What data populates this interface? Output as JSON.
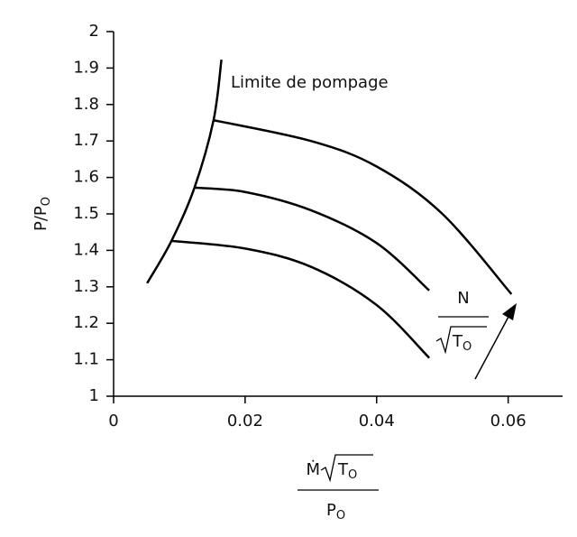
{
  "chart_data": {
    "type": "line",
    "ylabel": {
      "text": "P/P",
      "sub": "O"
    },
    "xlabel": {
      "numerator": "Ṁ",
      "root": "T",
      "root_sub": "O",
      "denominator": "P",
      "denominator_sub": "O"
    },
    "annotations": {
      "surge": "Limite de pompage",
      "speed_numerator": "N",
      "speed_root": "T",
      "speed_root_sub": "O"
    },
    "color": "#000000",
    "xlim": [
      0,
      0.068
    ],
    "ylim": [
      1,
      2
    ],
    "xticks": [
      0,
      0.02,
      0.04,
      0.06
    ],
    "yticks": [
      1,
      1.1,
      1.2,
      1.3,
      1.4,
      1.5,
      1.6,
      1.7,
      1.8,
      1.9,
      2
    ],
    "series": [
      {
        "x": [
          0.0051,
          0.0088,
          0.0123,
          0.0152,
          0.0164
        ],
        "values": [
          1.31,
          1.426,
          1.572,
          1.757,
          1.923
        ]
      },
      {
        "x": [
          0.0088,
          0.02,
          0.03,
          0.04,
          0.048
        ],
        "values": [
          1.426,
          1.405,
          1.355,
          1.25,
          1.105
        ]
      },
      {
        "x": [
          0.0123,
          0.02,
          0.03,
          0.04,
          0.048
        ],
        "values": [
          1.572,
          1.56,
          1.51,
          1.42,
          1.29
        ]
      },
      {
        "x": [
          0.0152,
          0.03,
          0.04,
          0.05,
          0.0605
        ],
        "values": [
          1.757,
          1.7,
          1.63,
          1.5,
          1.28
        ]
      }
    ]
  }
}
